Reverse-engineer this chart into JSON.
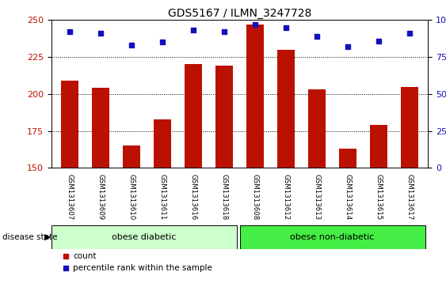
{
  "title": "GDS5167 / ILMN_3247728",
  "samples": [
    "GSM1313607",
    "GSM1313609",
    "GSM1313610",
    "GSM1313611",
    "GSM1313616",
    "GSM1313618",
    "GSM1313608",
    "GSM1313612",
    "GSM1313613",
    "GSM1313614",
    "GSM1313615",
    "GSM1313617"
  ],
  "counts": [
    209,
    204,
    165,
    183,
    220,
    219,
    247,
    230,
    203,
    163,
    179,
    205
  ],
  "percentiles": [
    92,
    91,
    83,
    85,
    93,
    92,
    97,
    95,
    89,
    82,
    86,
    91
  ],
  "ylim_left": [
    150,
    250
  ],
  "ylim_right": [
    0,
    100
  ],
  "yticks_left": [
    150,
    175,
    200,
    225,
    250
  ],
  "yticks_right": [
    0,
    25,
    50,
    75,
    100
  ],
  "bar_color": "#BB1100",
  "dot_color": "#1111BB",
  "bg_color": "#FFFFFF",
  "tick_area_color": "#CCCCCC",
  "group1_label": "obese diabetic",
  "group2_label": "obese non-diabetic",
  "group1_color": "#CCFFCC",
  "group2_color": "#44EE44",
  "group1_count": 6,
  "group2_count": 6,
  "disease_state_label": "disease state",
  "legend_count_label": "count",
  "legend_pct_label": "percentile rank within the sample",
  "title_fontsize": 10,
  "tick_fontsize": 8,
  "label_fontsize": 7,
  "group_fontsize": 8
}
